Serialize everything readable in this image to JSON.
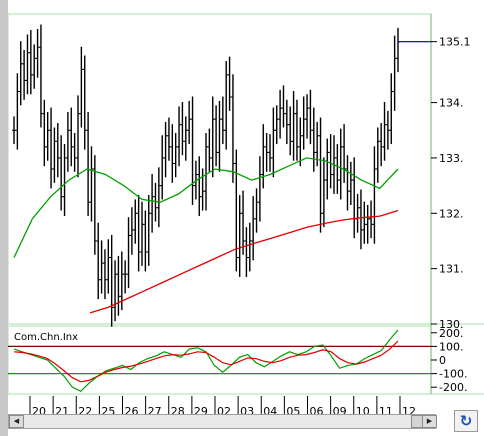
{
  "chart_data": [
    {
      "type": "line",
      "subtype": "price-bars-with-moving-averages",
      "x_tick_labels": [
        "20",
        "21",
        "22",
        "25",
        "26",
        "27",
        "28",
        "29",
        "02",
        "03",
        "04",
        "05",
        "06",
        "09",
        "10",
        "11",
        "12"
      ],
      "y_tick_labels": [
        "135.1",
        "134.",
        "133.",
        "132.",
        "131.",
        "130."
      ],
      "ylim": [
        130.0,
        135.6
      ],
      "last_price_label": "135.1",
      "grid": false,
      "bar_color": "#000000",
      "price_series": [
        133.5,
        134.2,
        134.7,
        134.4,
        134.9,
        134.5,
        134.8,
        135.0,
        133.8,
        133.2,
        133.5,
        132.8,
        133.3,
        133.0,
        132.3,
        133.0,
        133.5,
        133.2,
        133.0,
        133.8,
        134.6,
        133.5,
        132.2,
        132.8,
        131.5,
        130.8,
        131.1,
        130.8,
        131.2,
        130.3,
        130.9,
        130.5,
        130.9,
        130.9,
        131.6,
        131.7,
        132.0,
        131.3,
        131.8,
        131.3,
        132.0,
        132.3,
        132.1,
        132.5,
        133.0,
        133.4,
        133.2,
        132.9,
        133.2,
        133.6,
        133.3,
        133.5,
        133.7,
        132.5,
        132.7,
        132.3,
        132.4,
        133.2,
        133.0,
        133.7,
        133.1,
        133.7,
        133.5,
        134.5,
        134.1,
        132.9,
        131.2,
        132.0,
        131.5,
        131.2,
        131.5,
        131.9,
        132.2,
        132.7,
        133.2,
        133.1,
        133.0,
        133.5,
        133.7,
        133.9,
        133.8,
        133.6,
        133.3,
        133.8,
        133.2,
        133.4,
        133.7,
        133.9,
        133.5,
        133.1,
        133.4,
        132.0,
        132.6,
        133.1,
        132.7,
        133.0,
        132.6,
        133.2,
        132.8,
        132.4,
        132.6,
        131.9,
        132.1,
        131.7,
        131.8,
        131.9,
        131.8,
        132.8,
        133.3,
        133.2,
        133.6,
        133.5,
        134.2,
        134.8,
        135.1
      ],
      "series": [
        {
          "role": "long-ma",
          "color": "#e00000",
          "values": [
            130.2,
            130.3,
            130.45,
            130.6,
            130.75,
            130.9,
            131.05,
            131.2,
            131.35,
            131.45,
            131.55,
            131.65,
            131.75,
            131.82,
            131.88,
            131.92,
            131.95,
            132.05
          ]
        },
        {
          "role": "short-ma",
          "color": "#00a000",
          "values": [
            131.2,
            131.9,
            132.3,
            132.6,
            132.8,
            132.7,
            132.5,
            132.25,
            132.2,
            132.35,
            132.6,
            132.8,
            132.75,
            132.6,
            132.7,
            132.85,
            133.0,
            132.95,
            132.8,
            132.6,
            132.45,
            132.8
          ]
        }
      ]
    },
    {
      "type": "line",
      "title": "Com.Chn.Inx",
      "y_tick_labels": [
        "200.",
        "100.",
        "0",
        "-100.",
        "-200."
      ],
      "ylim": [
        -250,
        250
      ],
      "levels": [
        100,
        -100
      ],
      "level_colors": [
        "#800000",
        "#00a000"
      ],
      "series": [
        {
          "role": "index",
          "color": "#00a000",
          "values": [
            80,
            60,
            40,
            20,
            0,
            -60,
            -120,
            -200,
            -230,
            -170,
            -120,
            -80,
            -60,
            -40,
            -70,
            -20,
            10,
            30,
            60,
            40,
            20,
            80,
            90,
            60,
            -40,
            -90,
            -40,
            20,
            40,
            -20,
            -50,
            -10,
            30,
            60,
            40,
            60,
            100,
            110,
            30,
            -60,
            -40,
            -30,
            10,
            40,
            70,
            150,
            220
          ]
        },
        {
          "role": "signal",
          "color": "#e00000",
          "values": [
            60,
            55,
            45,
            30,
            10,
            -30,
            -80,
            -130,
            -160,
            -150,
            -120,
            -90,
            -70,
            -55,
            -45,
            -30,
            -10,
            10,
            30,
            40,
            35,
            45,
            60,
            55,
            20,
            -20,
            -35,
            -10,
            15,
            10,
            -10,
            -20,
            -5,
            20,
            35,
            40,
            55,
            75,
            60,
            10,
            -20,
            -30,
            -15,
            10,
            35,
            80,
            140
          ]
        }
      ]
    }
  ]
}
